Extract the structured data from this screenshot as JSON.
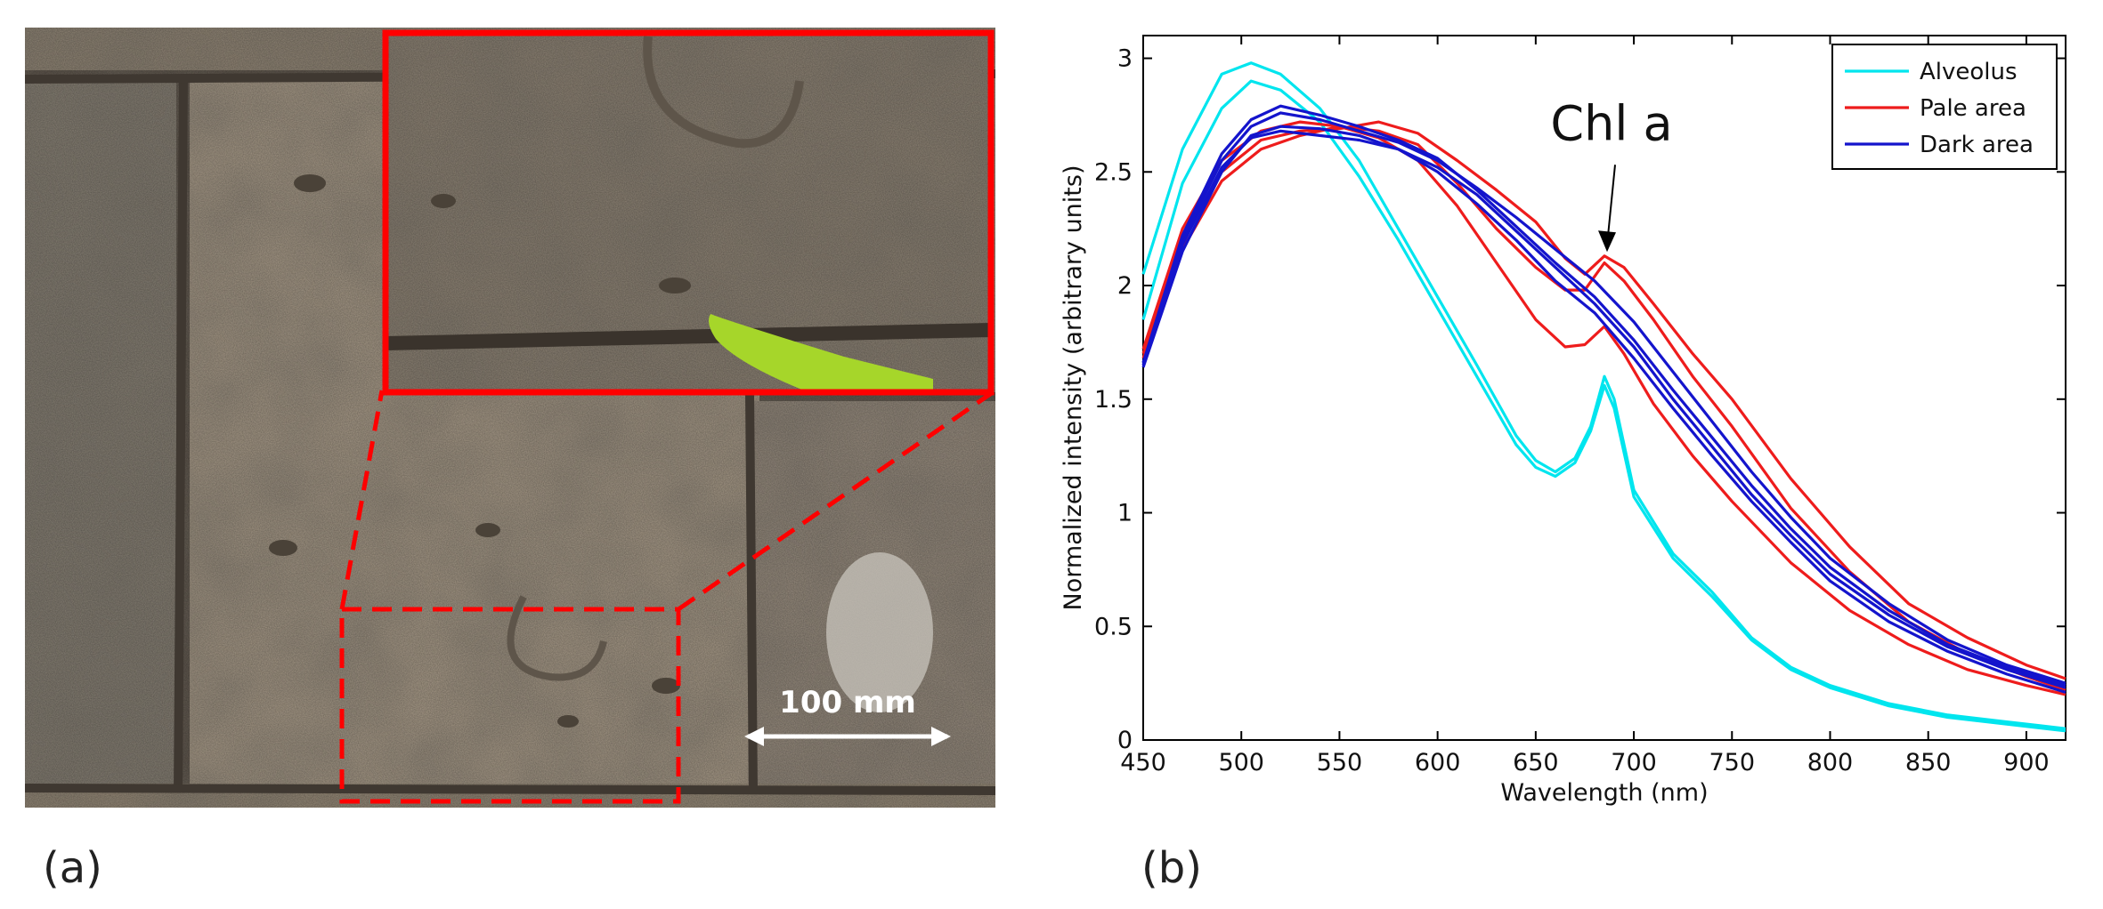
{
  "panels": {
    "a_label": "(a)",
    "b_label": "(b)"
  },
  "photo": {
    "scale_bar_label": "100 mm",
    "colors": {
      "stone": "#a99b89",
      "stone_dark": "#7b7163",
      "mortar": "#4e463d",
      "highlight": "#ff0000",
      "pointer": "#a6d62a",
      "scale_bar": "#ffffff"
    }
  },
  "chart_data": {
    "type": "line",
    "title": "",
    "xlabel": "Wavelength (nm)",
    "ylabel": "Normalized intensity (arbitrary units)",
    "xlim": [
      450,
      920
    ],
    "ylim": [
      0,
      3.1
    ],
    "xticks": [
      450,
      500,
      550,
      600,
      650,
      700,
      750,
      800,
      850,
      900
    ],
    "yticks": [
      0,
      0.5,
      1,
      1.5,
      2,
      2.5,
      3
    ],
    "ytick_labels": [
      "0",
      "0.5",
      "1",
      "1.5",
      "2",
      "2.5",
      "3"
    ],
    "grid": false,
    "legend_position": "top-right",
    "legend": [
      {
        "name": "Alveolus",
        "color": "#00e5ee"
      },
      {
        "name": "Pale area",
        "color": "#ee1c1c"
      },
      {
        "name": "Dark area",
        "color": "#1414cc"
      }
    ],
    "annotation": {
      "text": "Chl a",
      "x": 685,
      "y": 2.14
    },
    "series": [
      {
        "name": "Alveolus",
        "group": "Alveolus",
        "color": "#00e5ee",
        "points": [
          [
            450,
            2.05
          ],
          [
            470,
            2.6
          ],
          [
            490,
            2.93
          ],
          [
            505,
            2.98
          ],
          [
            520,
            2.93
          ],
          [
            540,
            2.78
          ],
          [
            560,
            2.55
          ],
          [
            580,
            2.25
          ],
          [
            600,
            1.95
          ],
          [
            620,
            1.65
          ],
          [
            640,
            1.34
          ],
          [
            650,
            1.23
          ],
          [
            660,
            1.18
          ],
          [
            670,
            1.24
          ],
          [
            678,
            1.38
          ],
          [
            685,
            1.6
          ],
          [
            690,
            1.5
          ],
          [
            700,
            1.1
          ],
          [
            720,
            0.82
          ],
          [
            740,
            0.65
          ],
          [
            760,
            0.45
          ],
          [
            780,
            0.32
          ],
          [
            800,
            0.24
          ],
          [
            830,
            0.16
          ],
          [
            860,
            0.11
          ],
          [
            890,
            0.08
          ],
          [
            920,
            0.05
          ]
        ]
      },
      {
        "name": "Alveolus",
        "group": "Alveolus",
        "color": "#00e5ee",
        "points": [
          [
            450,
            1.85
          ],
          [
            470,
            2.45
          ],
          [
            490,
            2.78
          ],
          [
            505,
            2.9
          ],
          [
            520,
            2.86
          ],
          [
            540,
            2.72
          ],
          [
            560,
            2.48
          ],
          [
            580,
            2.2
          ],
          [
            600,
            1.9
          ],
          [
            620,
            1.6
          ],
          [
            640,
            1.3
          ],
          [
            650,
            1.2
          ],
          [
            660,
            1.16
          ],
          [
            670,
            1.22
          ],
          [
            678,
            1.36
          ],
          [
            685,
            1.56
          ],
          [
            690,
            1.46
          ],
          [
            700,
            1.07
          ],
          [
            720,
            0.8
          ],
          [
            740,
            0.63
          ],
          [
            760,
            0.44
          ],
          [
            780,
            0.31
          ],
          [
            800,
            0.23
          ],
          [
            830,
            0.15
          ],
          [
            860,
            0.1
          ],
          [
            890,
            0.07
          ],
          [
            920,
            0.04
          ]
        ]
      },
      {
        "name": "Pale area",
        "group": "Pale area",
        "color": "#ee1c1c",
        "points": [
          [
            450,
            1.7
          ],
          [
            470,
            2.2
          ],
          [
            490,
            2.5
          ],
          [
            510,
            2.64
          ],
          [
            530,
            2.68
          ],
          [
            550,
            2.69
          ],
          [
            570,
            2.72
          ],
          [
            590,
            2.67
          ],
          [
            610,
            2.55
          ],
          [
            630,
            2.42
          ],
          [
            650,
            2.28
          ],
          [
            665,
            2.12
          ],
          [
            675,
            2.05
          ],
          [
            685,
            2.13
          ],
          [
            695,
            2.08
          ],
          [
            710,
            1.92
          ],
          [
            730,
            1.7
          ],
          [
            750,
            1.5
          ],
          [
            780,
            1.15
          ],
          [
            810,
            0.85
          ],
          [
            840,
            0.6
          ],
          [
            870,
            0.45
          ],
          [
            900,
            0.33
          ],
          [
            920,
            0.27
          ]
        ]
      },
      {
        "name": "Pale area",
        "group": "Pale area",
        "color": "#ee1c1c",
        "points": [
          [
            450,
            1.68
          ],
          [
            470,
            2.16
          ],
          [
            490,
            2.46
          ],
          [
            510,
            2.6
          ],
          [
            530,
            2.66
          ],
          [
            550,
            2.7
          ],
          [
            570,
            2.68
          ],
          [
            590,
            2.62
          ],
          [
            610,
            2.45
          ],
          [
            630,
            2.25
          ],
          [
            650,
            2.08
          ],
          [
            665,
            1.98
          ],
          [
            675,
            1.98
          ],
          [
            685,
            2.1
          ],
          [
            695,
            2.02
          ],
          [
            710,
            1.85
          ],
          [
            730,
            1.6
          ],
          [
            750,
            1.38
          ],
          [
            780,
            1.02
          ],
          [
            810,
            0.74
          ],
          [
            840,
            0.52
          ],
          [
            870,
            0.38
          ],
          [
            900,
            0.28
          ],
          [
            920,
            0.22
          ]
        ]
      },
      {
        "name": "Pale area",
        "group": "Pale area",
        "color": "#ee1c1c",
        "points": [
          [
            450,
            1.72
          ],
          [
            470,
            2.25
          ],
          [
            490,
            2.55
          ],
          [
            510,
            2.68
          ],
          [
            530,
            2.72
          ],
          [
            550,
            2.7
          ],
          [
            570,
            2.65
          ],
          [
            590,
            2.55
          ],
          [
            610,
            2.35
          ],
          [
            630,
            2.1
          ],
          [
            650,
            1.85
          ],
          [
            665,
            1.73
          ],
          [
            675,
            1.74
          ],
          [
            685,
            1.82
          ],
          [
            695,
            1.7
          ],
          [
            710,
            1.48
          ],
          [
            730,
            1.25
          ],
          [
            750,
            1.05
          ],
          [
            780,
            0.78
          ],
          [
            810,
            0.57
          ],
          [
            840,
            0.42
          ],
          [
            870,
            0.31
          ],
          [
            900,
            0.24
          ],
          [
            920,
            0.2
          ]
        ]
      },
      {
        "name": "Dark area",
        "group": "Dark area",
        "color": "#1414cc",
        "points": [
          [
            450,
            1.66
          ],
          [
            470,
            2.2
          ],
          [
            490,
            2.55
          ],
          [
            505,
            2.7
          ],
          [
            520,
            2.76
          ],
          [
            540,
            2.73
          ],
          [
            560,
            2.68
          ],
          [
            580,
            2.63
          ],
          [
            600,
            2.55
          ],
          [
            620,
            2.43
          ],
          [
            640,
            2.3
          ],
          [
            660,
            2.16
          ],
          [
            680,
            2.02
          ],
          [
            700,
            1.84
          ],
          [
            720,
            1.62
          ],
          [
            740,
            1.4
          ],
          [
            760,
            1.18
          ],
          [
            780,
            0.98
          ],
          [
            800,
            0.8
          ],
          [
            830,
            0.6
          ],
          [
            860,
            0.44
          ],
          [
            890,
            0.33
          ],
          [
            920,
            0.25
          ]
        ]
      },
      {
        "name": "Dark area",
        "group": "Dark area",
        "color": "#1414cc",
        "points": [
          [
            450,
            1.64
          ],
          [
            470,
            2.15
          ],
          [
            490,
            2.5
          ],
          [
            505,
            2.66
          ],
          [
            520,
            2.7
          ],
          [
            540,
            2.69
          ],
          [
            560,
            2.66
          ],
          [
            580,
            2.6
          ],
          [
            600,
            2.52
          ],
          [
            620,
            2.4
          ],
          [
            640,
            2.24
          ],
          [
            660,
            2.08
          ],
          [
            680,
            1.92
          ],
          [
            700,
            1.73
          ],
          [
            720,
            1.5
          ],
          [
            740,
            1.29
          ],
          [
            760,
            1.08
          ],
          [
            780,
            0.9
          ],
          [
            800,
            0.73
          ],
          [
            830,
            0.55
          ],
          [
            860,
            0.41
          ],
          [
            890,
            0.31
          ],
          [
            920,
            0.23
          ]
        ]
      },
      {
        "name": "Dark area",
        "group": "Dark area",
        "color": "#1414cc",
        "points": [
          [
            450,
            1.66
          ],
          [
            470,
            2.22
          ],
          [
            490,
            2.58
          ],
          [
            505,
            2.73
          ],
          [
            520,
            2.79
          ],
          [
            540,
            2.75
          ],
          [
            560,
            2.7
          ],
          [
            580,
            2.64
          ],
          [
            600,
            2.56
          ],
          [
            620,
            2.42
          ],
          [
            640,
            2.26
          ],
          [
            660,
            2.1
          ],
          [
            680,
            1.95
          ],
          [
            700,
            1.76
          ],
          [
            720,
            1.54
          ],
          [
            740,
            1.33
          ],
          [
            760,
            1.12
          ],
          [
            780,
            0.93
          ],
          [
            800,
            0.76
          ],
          [
            830,
            0.57
          ],
          [
            860,
            0.42
          ],
          [
            890,
            0.32
          ],
          [
            920,
            0.24
          ]
        ]
      },
      {
        "name": "Dark area",
        "group": "Dark area",
        "color": "#1414cc",
        "points": [
          [
            450,
            1.65
          ],
          [
            470,
            2.18
          ],
          [
            490,
            2.52
          ],
          [
            505,
            2.65
          ],
          [
            520,
            2.68
          ],
          [
            540,
            2.66
          ],
          [
            560,
            2.64
          ],
          [
            580,
            2.6
          ],
          [
            600,
            2.5
          ],
          [
            620,
            2.36
          ],
          [
            640,
            2.2
          ],
          [
            660,
            2.02
          ],
          [
            680,
            1.88
          ],
          [
            700,
            1.68
          ],
          [
            720,
            1.46
          ],
          [
            740,
            1.25
          ],
          [
            760,
            1.05
          ],
          [
            780,
            0.87
          ],
          [
            800,
            0.7
          ],
          [
            830,
            0.52
          ],
          [
            860,
            0.39
          ],
          [
            890,
            0.29
          ],
          [
            920,
            0.21
          ]
        ]
      }
    ]
  }
}
